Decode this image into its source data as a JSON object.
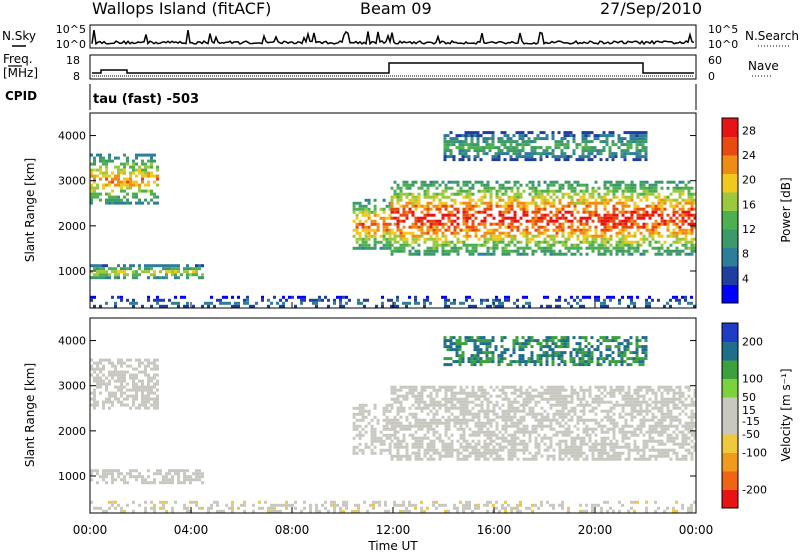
{
  "header": {
    "station": "Wallops Island (fitACF)",
    "beam": "Beam 09",
    "date": "27/Sep/2010"
  },
  "strip_nsky": {
    "left_label": "N.Sky",
    "right_label": "N.Search",
    "left_ticks": [
      "10^5",
      "10^0"
    ],
    "right_ticks": [
      "10^5",
      "10^0"
    ]
  },
  "strip_freq": {
    "left_label_line1": "Freq.",
    "left_label_line2": "[MHz]",
    "right_label": "Nave",
    "left_ticks": [
      "18",
      "8"
    ],
    "right_ticks": [
      "60",
      "0"
    ]
  },
  "cpid": {
    "label": "CPID",
    "value": "tau (fast) -503"
  },
  "chart_data": [
    {
      "type": "heatmap",
      "quantity": "Power",
      "ylabel": "Slant Range [km]",
      "xlabel": "Time UT",
      "xlim_hours": [
        0,
        24
      ],
      "ylim_km": [
        180,
        4500
      ],
      "y_ticks": [
        1000,
        2000,
        3000,
        4000
      ],
      "x_ticks": [
        "00:00",
        "04:00",
        "08:00",
        "12:00",
        "16:00",
        "20:00",
        "00:00"
      ],
      "colorbar_label": "Power [dB]",
      "colorbar_ticks": [
        28,
        24,
        20,
        16,
        12,
        8,
        4
      ],
      "colorbar_range": [
        0,
        30
      ],
      "colormap": [
        "#0000ff",
        "#1e3fa0",
        "#2e7d9a",
        "#3c9a6a",
        "#4cb050",
        "#9bc83c",
        "#f0c81e",
        "#f08c14",
        "#e84a10",
        "#e81414"
      ],
      "echo_regions": [
        {
          "name": "near-range morning band",
          "t_start": 0.0,
          "t_end": 4.5,
          "range_low_km": 850,
          "range_high_km": 1150,
          "peak_db": 20
        },
        {
          "name": "early far-range echoes",
          "t_start": 0.0,
          "t_end": 2.7,
          "range_low_km": 2500,
          "range_high_km": 3600,
          "peak_db": 24
        },
        {
          "name": "dusk ground scatter",
          "t_start": 10.4,
          "t_end": 11.9,
          "range_low_km": 1500,
          "range_high_km": 2600,
          "peak_db": 26
        },
        {
          "name": "main afternoon band",
          "t_start": 11.9,
          "t_end": 24.0,
          "range_low_km": 1400,
          "range_high_km": 3000,
          "peak_db": 30
        },
        {
          "name": "upper patches",
          "t_start": 14.0,
          "t_end": 22.0,
          "range_low_km": 3500,
          "range_high_km": 4100,
          "peak_db": 14
        },
        {
          "name": "low range clutter",
          "t_start": 0.0,
          "t_end": 24.0,
          "range_low_km": 200,
          "range_high_km": 450,
          "peak_db": 8
        }
      ]
    },
    {
      "type": "heatmap",
      "quantity": "Velocity",
      "ylabel": "Slant Range [km]",
      "xlabel": "Time UT",
      "xlim_hours": [
        0,
        24
      ],
      "ylim_km": [
        180,
        4500
      ],
      "y_ticks": [
        1000,
        2000,
        3000,
        4000
      ],
      "x_ticks": [
        "00:00",
        "04:00",
        "08:00",
        "12:00",
        "16:00",
        "20:00",
        "00:00"
      ],
      "colorbar_label": "Velocity [m s⁻¹]",
      "colorbar_ticks": [
        200,
        100,
        50,
        15,
        -15,
        -50,
        -100,
        -200
      ],
      "colorbar_range": [
        -250,
        250
      ],
      "colormap": [
        "#e81414",
        "#f06414",
        "#f09a1e",
        "#f0c83c",
        "#c8c8c0",
        "#c8c8c0",
        "#7cd23c",
        "#3ca03c",
        "#1e6e8c",
        "#1e3cc8"
      ],
      "echo_regions": [
        {
          "name": "near-range morning band",
          "t_start": 0.0,
          "t_end": 4.5,
          "range_low_km": 850,
          "range_high_km": 1150,
          "velocity_ms": 30
        },
        {
          "name": "early far-range echoes",
          "t_start": 0.0,
          "t_end": 2.7,
          "range_low_km": 2500,
          "range_high_km": 3600,
          "velocity_ms": 0
        },
        {
          "name": "dusk ground scatter",
          "t_start": 10.4,
          "t_end": 11.9,
          "range_low_km": 1500,
          "range_high_km": 2600,
          "velocity_ms": 0
        },
        {
          "name": "main afternoon band",
          "t_start": 11.9,
          "t_end": 24.0,
          "range_low_km": 1400,
          "range_high_km": 3000,
          "velocity_ms": 0
        },
        {
          "name": "upper patches",
          "t_start": 14.0,
          "t_end": 22.0,
          "range_low_km": 3500,
          "range_high_km": 4100,
          "velocity_ms": 150
        },
        {
          "name": "low range clutter",
          "t_start": 0.0,
          "t_end": 24.0,
          "range_low_km": 200,
          "range_high_km": 450,
          "velocity_ms": -40
        }
      ]
    }
  ]
}
